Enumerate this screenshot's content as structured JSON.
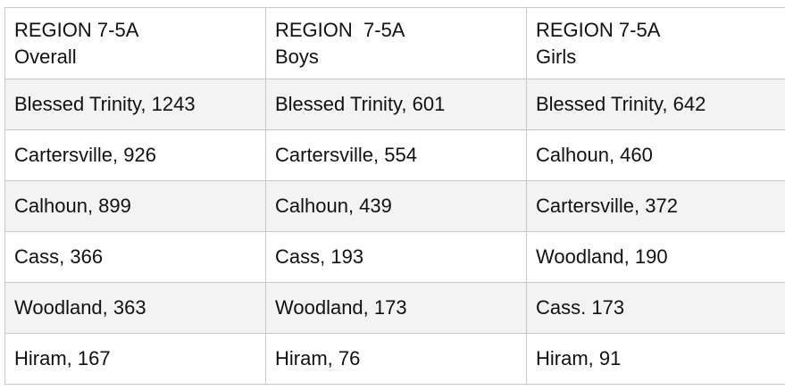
{
  "table": {
    "columns": [
      {
        "region": "REGION 7-5A",
        "group": "Overall"
      },
      {
        "region": "REGION  7-5A",
        "group": "Boys"
      },
      {
        "region": "REGION 7-5A",
        "group": "Girls"
      }
    ],
    "rows": [
      [
        "Blessed Trinity, 1243",
        "Blessed Trinity, 601",
        "Blessed Trinity, 642"
      ],
      [
        "Cartersville, 926",
        "Cartersville, 554",
        "Calhoun, 460"
      ],
      [
        "Calhoun, 899",
        "Calhoun, 439",
        "Cartersville, 372"
      ],
      [
        "Cass, 366",
        "Cass, 193",
        "Woodland, 190"
      ],
      [
        "Woodland, 363",
        "Woodland, 173",
        "Cass. 173"
      ],
      [
        "Hiram, 167",
        "Hiram, 76",
        "Hiram, 91"
      ]
    ]
  }
}
